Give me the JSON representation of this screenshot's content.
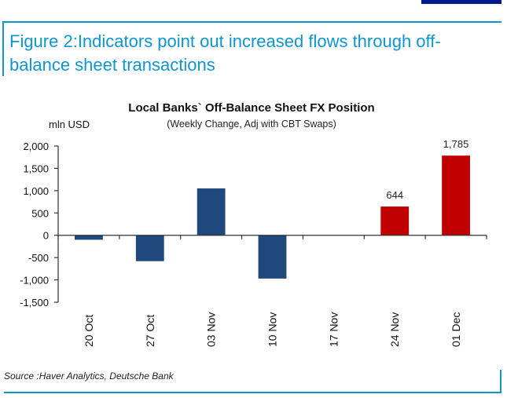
{
  "figure": {
    "title": "Figure 2:Indicators point out increased flows through off-balance sheet transactions",
    "source": "Source :Haver Analytics, Deutsche Bank"
  },
  "colors": {
    "accent": "#0d96cf",
    "corner_block": "#001a8c",
    "bar_blue": "#1f497d",
    "bar_red": "#c00000"
  },
  "chart_data": {
    "type": "bar",
    "title": "Local Banks` Off-Balance Sheet FX Position",
    "subtitle": "(Weekly Change, Adj with CBT Swaps)",
    "ylabel": "mln USD",
    "xlabel": "",
    "categories": [
      "20 Oct",
      "27 Oct",
      "03 Nov",
      "10 Nov",
      "17 Nov",
      "24 Nov",
      "01 Dec"
    ],
    "values": [
      -100,
      -580,
      1050,
      -970,
      0,
      644,
      1785
    ],
    "bar_colors": [
      "blue",
      "blue",
      "blue",
      "blue",
      "blue",
      "red",
      "red"
    ],
    "data_labels": [
      "",
      "",
      "",
      "",
      "",
      "644",
      "1,785"
    ],
    "ylim": [
      -1500,
      2000
    ],
    "yticks": [
      2000,
      1500,
      1000,
      500,
      0,
      -500,
      -1000,
      -1500
    ],
    "ytick_labels": [
      "2,000",
      "1,500",
      "1,000",
      "500",
      "0",
      "-500",
      "-1,000",
      "-1,500"
    ],
    "grid": false,
    "legend": "none"
  }
}
